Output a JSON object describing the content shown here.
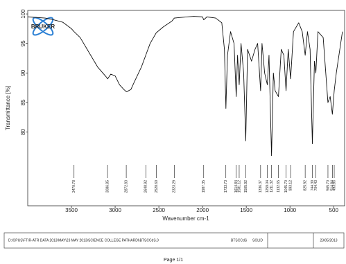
{
  "chart_data": {
    "type": "line",
    "logo": "BRUKER",
    "xlabel": "Wavenumber cm-1",
    "ylabel": "Transmittance [%]",
    "xlim": [
      4000,
      375
    ],
    "ylim": [
      67.5,
      100.6
    ],
    "xticks": [
      3500,
      3000,
      2500,
      2000,
      1500,
      1000,
      500
    ],
    "yticks": [
      80,
      85,
      90,
      95,
      100
    ],
    "series": [
      {
        "color": "#111111",
        "x": [
          4000,
          3800,
          3700,
          3600,
          3500,
          3470,
          3400,
          3300,
          3200,
          3100,
          3086,
          3050,
          3000,
          2950,
          2900,
          2870,
          2820,
          2780,
          2700,
          2650,
          2600,
          2530,
          2450,
          2350,
          2323,
          2250,
          2100,
          2000,
          1987,
          1950,
          1850,
          1780,
          1750,
          1733,
          1715,
          1680,
          1640,
          1615,
          1600,
          1581,
          1560,
          1530,
          1506,
          1485,
          1440,
          1400,
          1370,
          1336,
          1320,
          1290,
          1259,
          1240,
          1211,
          1190,
          1170,
          1132,
          1100,
          1070,
          1045,
          1020,
          993,
          960,
          900,
          860,
          826,
          800,
          770,
          744,
          720,
          704,
          680,
          620,
          566,
          540,
          515,
          494,
          470,
          400
        ],
        "values": [
          99.5,
          99.3,
          99,
          98.6,
          97.5,
          97,
          96,
          93.5,
          91,
          89.3,
          89,
          89.8,
          89.5,
          88,
          87.2,
          86.8,
          87.2,
          88.5,
          91,
          93,
          95,
          96.8,
          97.8,
          98.8,
          99.3,
          99.4,
          99.6,
          99.5,
          99,
          99.5,
          99.3,
          98.5,
          94,
          84,
          93,
          97,
          95,
          86,
          93,
          88,
          95,
          90,
          78.5,
          94,
          92,
          94,
          95,
          87,
          95,
          90,
          88,
          93,
          76,
          90,
          87,
          86,
          94,
          93,
          87,
          94,
          89,
          97,
          98.5,
          97,
          93,
          97,
          94,
          78,
          92,
          90,
          97,
          96,
          85,
          86,
          83,
          87,
          90,
          97
        ]
      }
    ],
    "peaks": [
      {
        "value": 3470.78,
        "label": "3470.78"
      },
      {
        "value": 3086.85,
        "label": "3086.85"
      },
      {
        "value": 2872.83,
        "label": "2872.83"
      },
      {
        "value": 2648.92,
        "label": "2648.92"
      },
      {
        "value": 2528.69,
        "label": "2528.69"
      },
      {
        "value": 2323.29,
        "label": "2323.29"
      },
      {
        "value": 1987.35,
        "label": "1987.35"
      },
      {
        "value": 1733.73,
        "label": "1733.73"
      },
      {
        "value": 1614.84,
        "label": "1614.84"
      },
      {
        "value": 1581.12,
        "label": "1581.12"
      },
      {
        "value": 1505.92,
        "label": "1505.92"
      },
      {
        "value": 1336.37,
        "label": "1336.37"
      },
      {
        "value": 1259.04,
        "label": "1259.04"
      },
      {
        "value": 1211.32,
        "label": "1211.32"
      },
      {
        "value": 1132.65,
        "label": "1132.65"
      },
      {
        "value": 1045.7,
        "label": "1045.70"
      },
      {
        "value": 993.12,
        "label": "993.12"
      },
      {
        "value": 825.92,
        "label": "825.92"
      },
      {
        "value": 744.39,
        "label": "744.39"
      },
      {
        "value": 704.43,
        "label": "704.43"
      },
      {
        "value": 565.7,
        "label": "565.70"
      },
      {
        "value": 514.84,
        "label": "514.84"
      },
      {
        "value": 493.86,
        "label": "493.86"
      }
    ]
  },
  "footer": {
    "path": "D:\\OPUS\\FTIR-ATR DATA 2013\\MAY\\23 MAY 2013\\SCIENCE COLLEGE PATHARDI\\BTSCCdS.0",
    "sample": "BTSCCdS",
    "state": "SOLID",
    "date": "23/05/2013",
    "page": "Page 1/1"
  }
}
